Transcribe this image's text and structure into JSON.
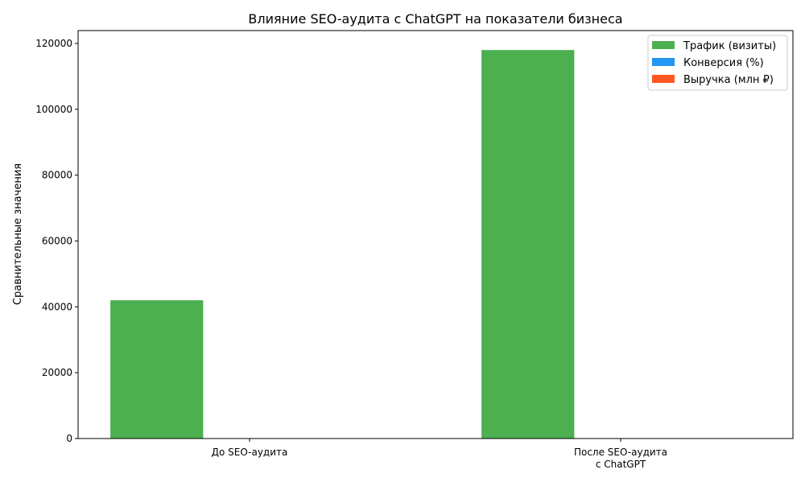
{
  "chart_data": {
    "type": "bar",
    "title": "Влияние SEO-аудита с ChatGPT на показатели бизнеса",
    "xlabel": "",
    "ylabel": "Сравнительные значения",
    "categories": [
      "До SEO-аудита",
      "После SEO-аудита\nс ChatGPT"
    ],
    "series": [
      {
        "name": "Трафик (визиты)",
        "color": "#4CAF50",
        "values": [
          42000,
          118000
        ]
      },
      {
        "name": "Конверсия (%)",
        "color": "#2196F3",
        "values": [
          2.1,
          3.8
        ]
      },
      {
        "name": "Выручка (млн ₽)",
        "color": "#FF5722",
        "values": [
          1.5,
          4.2
        ]
      }
    ],
    "ylim": [
      0,
      120000
    ],
    "yticks": [
      0,
      20000,
      40000,
      60000,
      80000,
      100000,
      120000
    ],
    "grid": false,
    "legend_position": "top-right"
  }
}
